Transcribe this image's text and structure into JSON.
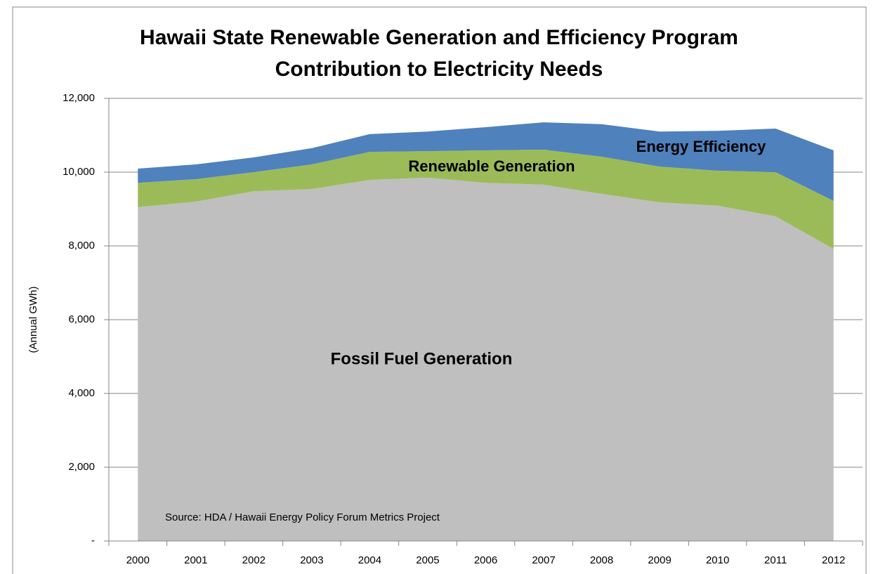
{
  "chart_data": {
    "type": "stacked_area",
    "title": [
      "Hawaii State Renewable Generation and Efficiency Program",
      "Contribution to Electricity Needs"
    ],
    "y_label": "(Annual GWh)",
    "source": "Source:  HDA / Hawaii Energy Policy Forum Metrics Project",
    "categories": [
      "2000",
      "2001",
      "2002",
      "2003",
      "2004",
      "2005",
      "2006",
      "2007",
      "2008",
      "2009",
      "2010",
      "2011",
      "2012"
    ],
    "series": [
      {
        "name": "Fossil Fuel Generation",
        "color": "#bfbfbf",
        "values": [
          9050,
          9200,
          9480,
          9540,
          9790,
          9850,
          9710,
          9660,
          9410,
          9180,
          9090,
          8800,
          7920
        ]
      },
      {
        "name": "Renewable Generation",
        "color": "#9bbb59",
        "values": [
          660,
          610,
          520,
          670,
          760,
          720,
          880,
          950,
          1010,
          970,
          950,
          1200,
          1300
        ]
      },
      {
        "name": "Energy Efficiency",
        "color": "#4f81bd",
        "values": [
          385,
          400,
          400,
          440,
          480,
          530,
          630,
          740,
          880,
          950,
          1080,
          1180,
          1370
        ]
      }
    ],
    "ylim": [
      0,
      12000
    ],
    "yticks": [
      {
        "value": 0,
        "label": "-"
      },
      {
        "value": 2000,
        "label": "2,000"
      },
      {
        "value": 4000,
        "label": "4,000"
      },
      {
        "value": 6000,
        "label": "6,000"
      },
      {
        "value": 8000,
        "label": "8,000"
      },
      {
        "value": 10000,
        "label": "10,000"
      },
      {
        "value": 12000,
        "label": "12,000"
      }
    ],
    "grid": true
  }
}
